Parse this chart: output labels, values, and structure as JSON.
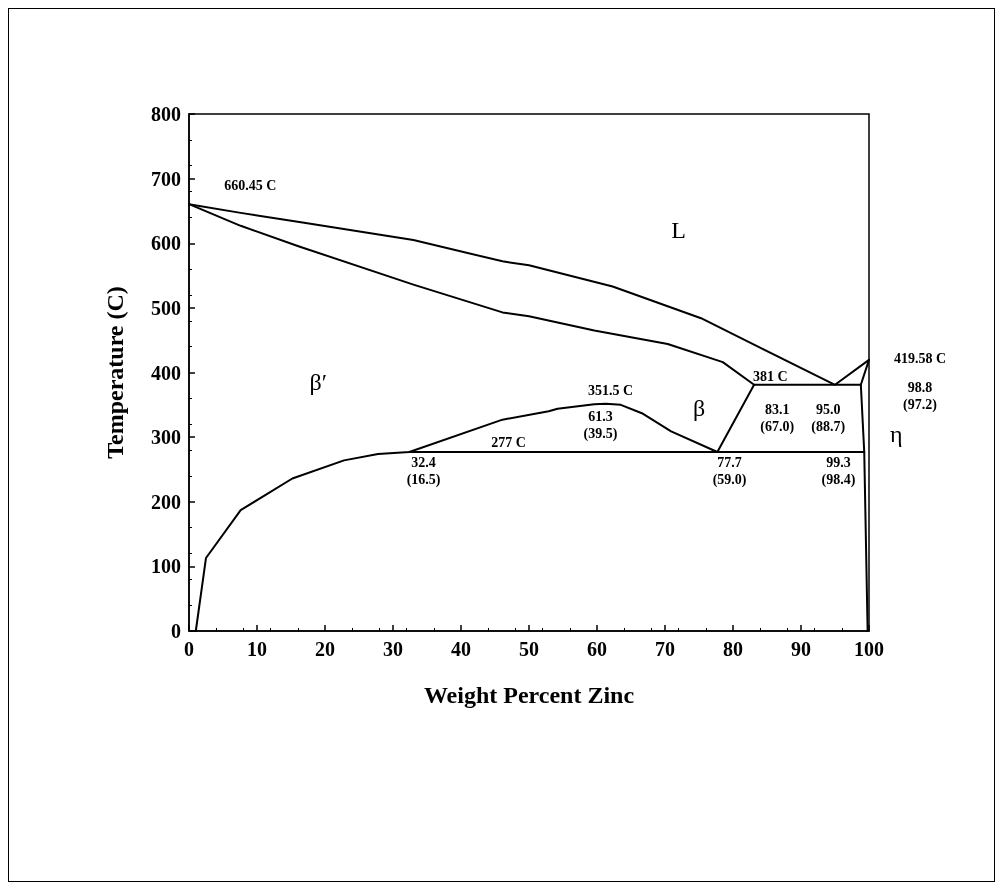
{
  "chart_data": {
    "type": "line",
    "xlabel": "Weight Percent Zinc",
    "ylabel": "Temperature (C)",
    "xlim": [
      0,
      100
    ],
    "xticks": [
      0,
      10,
      20,
      30,
      40,
      50,
      60,
      70,
      80,
      90,
      100
    ],
    "ylim": [
      0,
      800
    ],
    "yticks": [
      0,
      100,
      200,
      300,
      400,
      500,
      600,
      700,
      800
    ],
    "grid": false,
    "marker": "none",
    "line_style": "solid",
    "series": [
      {
        "color": "#000000",
        "x": [
          0,
          7.6,
          16.7,
          33,
          46.1,
          50,
          62.3,
          75.3,
          83.9,
          95,
          100
        ],
        "values": [
          660.45,
          647,
          632,
          605,
          572,
          566,
          533,
          484,
          439,
          381,
          419.58
        ]
      },
      {
        "color": "#000000",
        "x": [
          0,
          7.6,
          16.2,
          33,
          46.1,
          50,
          59.6,
          70.4,
          78.5,
          83.1
        ],
        "values": [
          660.45,
          627,
          595,
          536,
          493,
          487,
          465,
          444,
          416,
          381
        ]
      },
      {
        "color": "#000000",
        "x": [
          98.8,
          100
        ],
        "values": [
          381,
          419.58
        ]
      },
      {
        "color": "#000000",
        "x": [
          32.4,
          99.3
        ],
        "values": [
          277,
          277
        ]
      },
      {
        "color": "#000000",
        "x": [
          1,
          2.5,
          7.6,
          15.2,
          22.8,
          27.8,
          32.4,
          46.1,
          52.9,
          54.2,
          59.6,
          61.3,
          63.5,
          66.6,
          70.9,
          77.7,
          83.1,
          98.8,
          99.3,
          99.8
        ],
        "values": [
          0,
          113,
          187,
          236,
          264,
          274,
          277,
          327,
          340,
          344,
          351,
          351.5,
          350,
          337,
          309,
          277,
          381,
          381,
          277,
          0
        ]
      }
    ],
    "annotations": [
      "660.45 C",
      "L",
      "β′",
      "351.5 C",
      "61.3\n(39.5)",
      "277 C",
      "β",
      "32.4\n(16.5)",
      "77.7\n(59.0)",
      "381 C",
      "83.1\n(67.0)",
      "95.0\n(88.7)",
      "99.3\n(98.4)",
      "419.58 C",
      "98.8\n(97.2)",
      "η"
    ]
  }
}
